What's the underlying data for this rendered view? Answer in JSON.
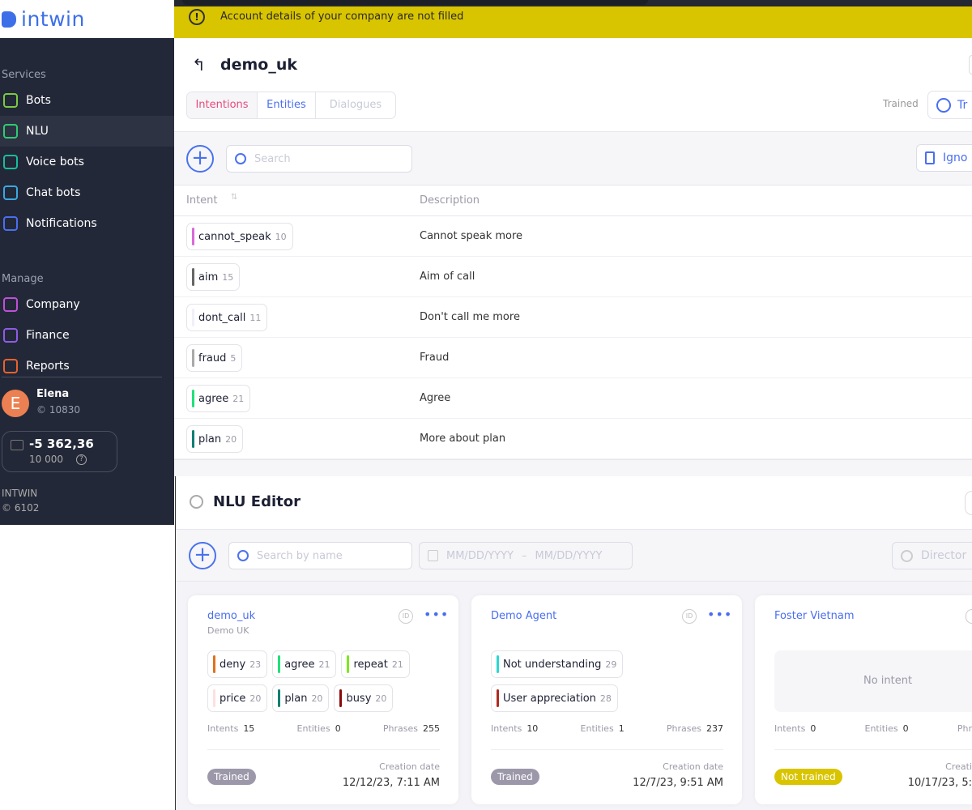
{
  "logo": "intwin",
  "banner": {
    "message": "Account details of your company are not filled",
    "color": "#d9c400"
  },
  "sidebar": {
    "services_label": "Services",
    "services": [
      {
        "label": "Bots",
        "icon": "branch-icon",
        "color": "#7ac943"
      },
      {
        "label": "NLU",
        "icon": "brain-icon",
        "color": "#2ecc71"
      },
      {
        "label": "Voice bots",
        "icon": "phone-icon",
        "color": "#1abc9c"
      },
      {
        "label": "Chat bots",
        "icon": "chat-icon",
        "color": "#3aa8e0"
      },
      {
        "label": "Notifications",
        "icon": "mail-icon",
        "color": "#4a6ef0"
      }
    ],
    "manage_label": "Manage",
    "manage": [
      {
        "label": "Company",
        "icon": "users-icon",
        "color": "#c04fd8"
      },
      {
        "label": "Finance",
        "icon": "database-icon",
        "color": "#8e5ce6"
      },
      {
        "label": "Reports",
        "icon": "chart-icon",
        "color": "#e8622c"
      }
    ],
    "user": {
      "initial": "E",
      "name": "Elena",
      "id": "10830"
    },
    "balance": {
      "amount": "-5 362,36",
      "limit": "10 000"
    },
    "company": {
      "name": "INTWIN",
      "id": "6102"
    }
  },
  "detail": {
    "title": "demo_uk",
    "tabs": [
      {
        "label": "Intentions",
        "color": "#e84a7a"
      },
      {
        "label": "Entities",
        "color": "#4a6ef0"
      },
      {
        "label": "Dialogues",
        "color": "#c8cad6"
      }
    ],
    "trained_label": "Trained",
    "train_button": "Tr",
    "search_placeholder": "Search",
    "ignore_button": "Igno",
    "columns": [
      "Intent",
      "Description"
    ],
    "rows": [
      {
        "name": "cannot_speak",
        "count": "10",
        "color": "#d86ad8",
        "description": "Cannot speak more"
      },
      {
        "name": "aim",
        "count": "15",
        "color": "#666",
        "description": "Aim of call"
      },
      {
        "name": "dont_call",
        "count": "11",
        "color": "#f0f0f8",
        "description": "Don't call me more"
      },
      {
        "name": "fraud",
        "count": "5",
        "color": "#aaa",
        "description": "Fraud"
      },
      {
        "name": "agree",
        "count": "21",
        "color": "#22e07a",
        "description": "Agree"
      },
      {
        "name": "plan",
        "count": "20",
        "color": "#0f7f74",
        "description": "More about plan"
      }
    ]
  },
  "editor": {
    "title": "NLU Editor",
    "search_placeholder": "Search by name",
    "date_from": "MM/DD/YYYY",
    "date_sep": "–",
    "date_to": "MM/DD/YYYY",
    "directory_button": "Director",
    "cards": [
      {
        "name": "demo_uk",
        "subtitle": "Demo UK",
        "intents_label": "Intents",
        "intents": "15",
        "entities_label": "Entities",
        "entities": "0",
        "phrases_label": "Phrases",
        "phrases": "255",
        "status": "Trained",
        "status_color": "#9c98aa",
        "date_label": "Creation date",
        "date": "12/12/23, 7:11 AM",
        "chips": [
          {
            "name": "deny",
            "count": "23",
            "color": "#e0701e"
          },
          {
            "name": "agree",
            "count": "21",
            "color": "#22e07a"
          },
          {
            "name": "repeat",
            "count": "21",
            "color": "#7be81e"
          },
          {
            "name": "price",
            "count": "20",
            "color": "#fde0e0"
          },
          {
            "name": "plan",
            "count": "20",
            "color": "#0f7f74"
          },
          {
            "name": "busy",
            "count": "20",
            "color": "#8a0a0a"
          }
        ]
      },
      {
        "name": "Demo Agent",
        "subtitle": "",
        "intents_label": "Intents",
        "intents": "10",
        "entities_label": "Entities",
        "entities": "1",
        "phrases_label": "Phrases",
        "phrases": "237",
        "status": "Trained",
        "status_color": "#9c98aa",
        "date_label": "Creation date",
        "date": "12/7/23, 9:51 AM",
        "chips": [
          {
            "name": "Not understanding",
            "count": "29",
            "color": "#2ad8d0"
          },
          {
            "name": "User appreciation",
            "count": "28",
            "color": "#b02a1e"
          }
        ]
      },
      {
        "name": "Foster Vietnam",
        "subtitle": "",
        "no_intent": "No intent",
        "intents_label": "Intents",
        "intents": "0",
        "entities_label": "Entities",
        "entities": "0",
        "phrases_label": "Phr",
        "status": "Not trained",
        "status_color": "#d9c400",
        "date_label": "Creati",
        "date": "10/17/23, 5:",
        "chips": []
      }
    ]
  }
}
